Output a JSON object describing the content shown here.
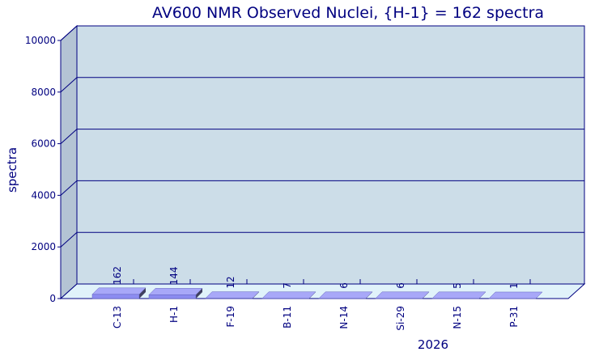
{
  "chart_data": {
    "type": "bar3d",
    "title": "AV600 NMR Observed Nuclei, {H-1} = 162 spectra",
    "y_label": "spectra",
    "x_label": "2026",
    "categories": [
      "C-13",
      "H-1",
      "F-19",
      "B-11",
      "N-14",
      "Si-29",
      "N-15",
      "P-31"
    ],
    "values": [
      162,
      144,
      12,
      7,
      6,
      6,
      5,
      1
    ],
    "color": "#8c8cf0",
    "ylim": [
      0,
      10000
    ],
    "yticks": [
      0,
      2000,
      4000,
      6000,
      8000,
      10000
    ],
    "grid": true
  }
}
